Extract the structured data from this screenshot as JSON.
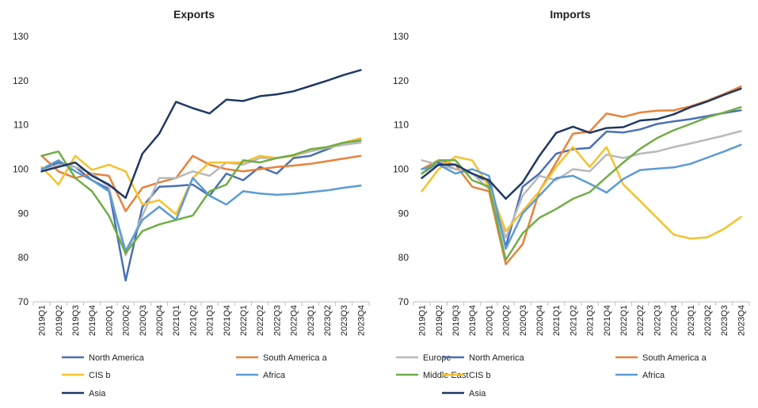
{
  "colors": {
    "North America": "#4a6fb5",
    "South America a": "#e8823a",
    "Europe": "#b9b9b9",
    "CIS b": "#f5c12e",
    "Africa": "#5b9bd5",
    "Middle East": "#70ad47",
    "Asia": "#1f3864"
  },
  "chart_data": [
    {
      "type": "line",
      "title": "Exports",
      "xlabel": "",
      "ylabel": "",
      "ylim": [
        70,
        130
      ],
      "yticks": [
        70,
        80,
        90,
        100,
        110,
        120,
        130
      ],
      "grid": false,
      "legend": "bottom",
      "x": [
        "2019Q1",
        "2019Q2",
        "2019Q3",
        "2019Q4",
        "2020Q1",
        "2020Q2",
        "2020Q3",
        "2020Q4",
        "2021Q1",
        "2021Q2",
        "2021Q3",
        "2021Q4",
        "2022Q1",
        "2022Q2",
        "2022Q3",
        "2022Q4",
        "2023Q1",
        "2023Q2",
        "2023Q3",
        "2023Q4"
      ],
      "series": [
        {
          "name": "North America",
          "values": [
            100.0,
            101.5,
            100.5,
            97.5,
            95.5,
            74.8,
            91.5,
            96.0,
            96.2,
            96.5,
            94.0,
            99.0,
            97.5,
            100.5,
            99.0,
            102.5,
            103.0,
            104.5,
            106.0,
            106.5
          ]
        },
        {
          "name": "South America a",
          "values": [
            103.0,
            99.5,
            98.0,
            99.0,
            98.5,
            90.5,
            95.8,
            97.0,
            98.0,
            103.0,
            101.0,
            100.0,
            99.5,
            100.0,
            100.5,
            100.8,
            101.2,
            101.8,
            102.4,
            103.0
          ]
        },
        {
          "name": "Europe",
          "values": [
            99.5,
            101.0,
            100.5,
            99.0,
            96.0,
            80.5,
            89.5,
            98.0,
            98.0,
            99.5,
            98.5,
            101.5,
            101.0,
            102.5,
            102.5,
            103.0,
            104.0,
            104.8,
            105.5,
            106.0
          ]
        },
        {
          "name": "CIS b",
          "values": [
            100.5,
            96.5,
            103.0,
            99.8,
            101.0,
            99.5,
            92.0,
            93.0,
            89.8,
            98.0,
            101.5,
            101.5,
            101.5,
            103.0,
            102.5,
            103.0,
            104.5,
            105.0,
            106.0,
            107.0
          ]
        },
        {
          "name": "Africa",
          "values": [
            100.0,
            102.0,
            99.5,
            97.5,
            95.0,
            81.5,
            88.5,
            91.5,
            88.5,
            98.0,
            94.0,
            92.0,
            95.0,
            94.5,
            94.2,
            94.4,
            94.8,
            95.2,
            95.8,
            96.3
          ]
        },
        {
          "name": "Middle East",
          "values": [
            103.0,
            104.0,
            98.0,
            95.0,
            89.5,
            81.0,
            86.0,
            87.5,
            88.5,
            89.5,
            95.0,
            96.5,
            102.0,
            101.5,
            102.5,
            103.2,
            104.5,
            105.0,
            106.0,
            106.5
          ]
        },
        {
          "name": "Asia",
          "values": [
            99.5,
            100.5,
            101.5,
            98.5,
            96.5,
            93.5,
            103.5,
            108.0,
            115.2,
            113.8,
            112.6,
            115.7,
            115.4,
            116.5,
            116.9,
            117.6,
            118.8,
            120.0,
            121.3,
            122.4
          ]
        }
      ]
    },
    {
      "type": "line",
      "title": "Imports",
      "xlabel": "",
      "ylabel": "",
      "ylim": [
        70,
        130
      ],
      "yticks": [
        70,
        80,
        90,
        100,
        110,
        120,
        130
      ],
      "grid": false,
      "legend": "bottom",
      "x": [
        "2019Q1",
        "2019Q2",
        "2019Q3",
        "2019Q4",
        "2020Q1",
        "2020Q2",
        "2020Q3",
        "2020Q4",
        "2021Q1",
        "2021Q2",
        "2021Q3",
        "2021Q4",
        "2022Q1",
        "2022Q2",
        "2022Q3",
        "2022Q4",
        "2023Q1",
        "2023Q2",
        "2023Q3",
        "2023Q4"
      ],
      "series": [
        {
          "name": "North America",
          "values": [
            99.0,
            101.5,
            100.0,
            99.0,
            97.0,
            82.5,
            96.0,
            99.0,
            103.5,
            104.5,
            104.8,
            108.5,
            108.3,
            109.0,
            110.2,
            110.8,
            111.3,
            112.0,
            112.7,
            113.3
          ]
        },
        {
          "name": "South America a",
          "values": [
            100.0,
            102.0,
            101.0,
            96.0,
            95.0,
            78.5,
            83.0,
            95.0,
            101.5,
            108.0,
            108.5,
            112.6,
            111.8,
            112.8,
            113.2,
            113.3,
            114.2,
            115.5,
            117.0,
            118.7
          ]
        },
        {
          "name": "Europe",
          "values": [
            102.0,
            101.0,
            100.0,
            99.0,
            95.5,
            84.5,
            94.0,
            98.5,
            97.5,
            100.0,
            99.5,
            103.3,
            102.5,
            103.5,
            104.0,
            105.0,
            105.8,
            106.7,
            107.6,
            108.6
          ]
        },
        {
          "name": "CIS b",
          "values": [
            95.0,
            100.0,
            102.8,
            102.0,
            96.0,
            86.0,
            90.5,
            95.0,
            100.5,
            105.0,
            100.5,
            105.0,
            96.5,
            92.8,
            89.0,
            85.2,
            84.3,
            84.6,
            86.5,
            89.2
          ]
        },
        {
          "name": "Africa",
          "values": [
            100.0,
            101.0,
            99.0,
            100.0,
            98.5,
            82.0,
            90.0,
            94.0,
            98.0,
            98.5,
            96.7,
            94.7,
            97.8,
            99.8,
            100.1,
            100.4,
            101.2,
            102.6,
            104.0,
            105.5
          ]
        },
        {
          "name": "Middle East",
          "values": [
            99.0,
            102.0,
            102.0,
            97.5,
            96.0,
            79.5,
            85.5,
            89.0,
            91.0,
            93.3,
            94.8,
            98.2,
            101.5,
            104.6,
            107.0,
            108.8,
            110.2,
            111.7,
            112.8,
            114.0
          ]
        },
        {
          "name": "Asia",
          "values": [
            98.0,
            101.0,
            101.0,
            99.0,
            97.5,
            93.3,
            97.0,
            103.0,
            108.2,
            109.6,
            108.2,
            109.3,
            109.5,
            111.0,
            111.3,
            112.4,
            114.0,
            115.3,
            116.8,
            118.2
          ]
        }
      ]
    }
  ],
  "legend_order": [
    "North America",
    "South America a",
    "Europe",
    "CIS b",
    "Africa",
    "Middle East",
    "Asia"
  ]
}
